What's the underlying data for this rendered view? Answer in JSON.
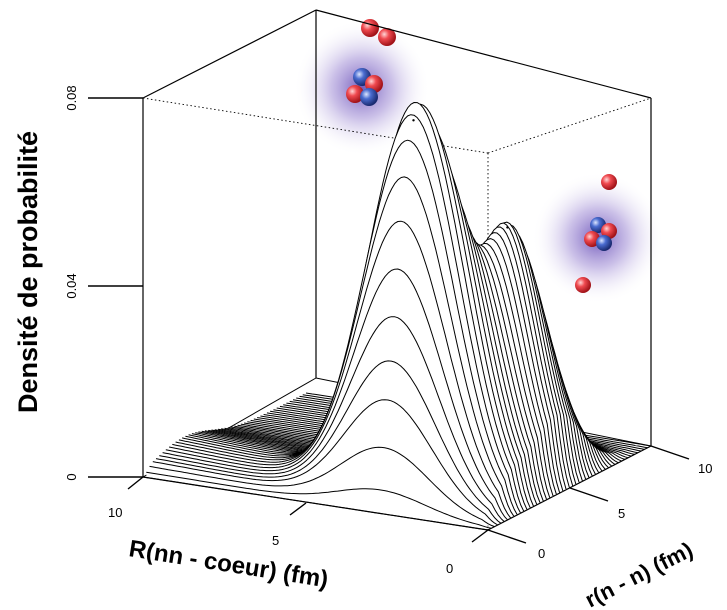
{
  "chart_data": {
    "type": "surface3d",
    "zlabel": "Densité de probabilité",
    "xlabel": "R(nn - coeur) (fm)",
    "ylabel": "r(n - n) (fm)",
    "z_ticks": [
      "0",
      "0.04",
      "0.08"
    ],
    "x_ticks": [
      "10",
      "5",
      "0"
    ],
    "y_ticks": [
      "0",
      "5",
      "10"
    ],
    "zlim": [
      0,
      0.08
    ],
    "xlim": [
      0,
      10
    ],
    "ylim": [
      0,
      10
    ],
    "peaks": [
      {
        "R": 3.2,
        "r": 2.2,
        "density": 0.079
      },
      {
        "R": 1.8,
        "r": 5.0,
        "density": 0.053
      }
    ],
    "grid": false,
    "colors": {
      "proton": "#e8303a",
      "neutron": "#3a5fc0",
      "halo": "#7a5cc0",
      "lines": "#000000"
    }
  }
}
